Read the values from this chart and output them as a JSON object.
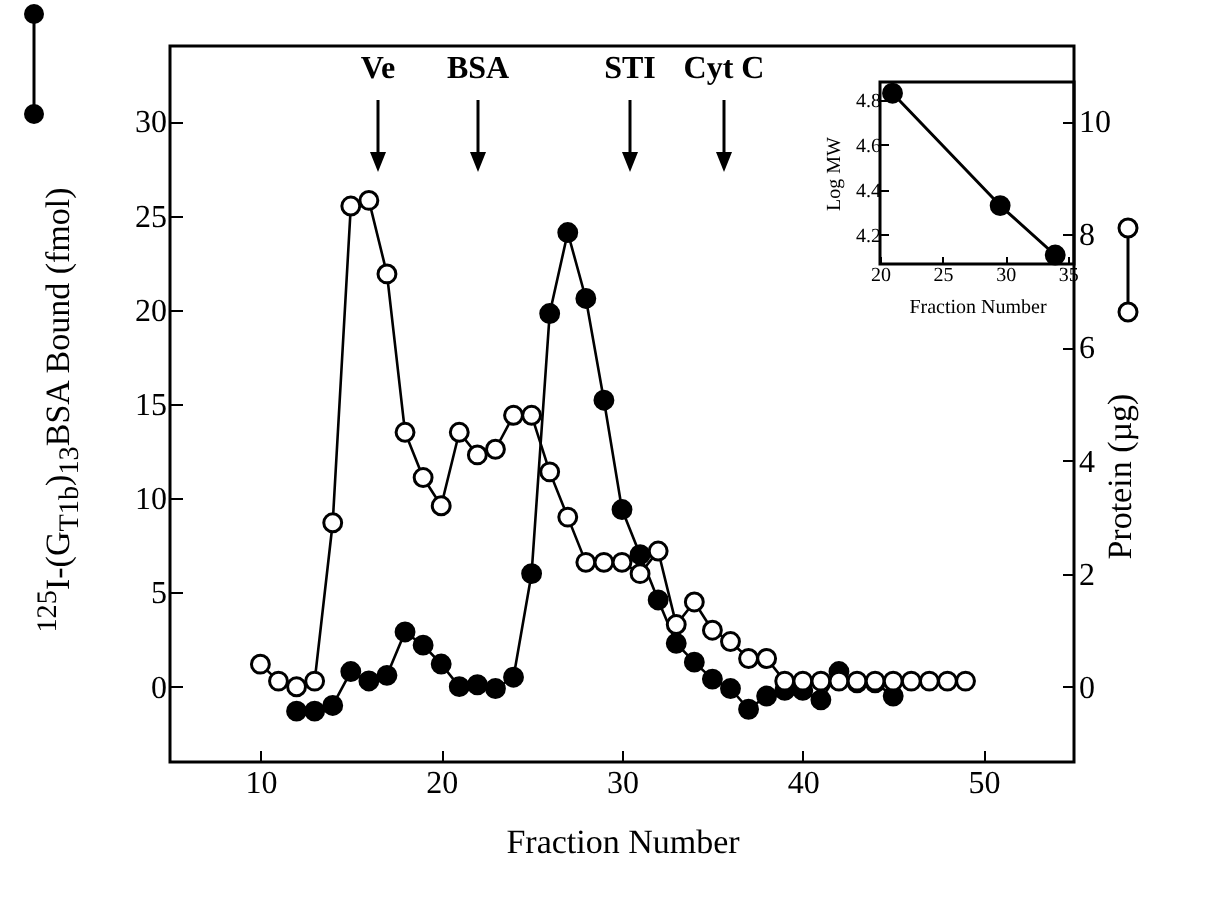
{
  "chart_data": [
    {
      "type": "line",
      "xlabel": "Fraction Number",
      "ylabel": "$^{125}$I-(G$_{T1b}$)$_{13}$BSA Bound  (fmol)",
      "y2label": "Protein (µg)",
      "xlim": [
        5,
        55
      ],
      "xticks": [
        10,
        20,
        30,
        40,
        50
      ],
      "ylim": [
        -4,
        34
      ],
      "yticks": [
        0,
        5,
        10,
        15,
        20,
        25,
        30
      ],
      "y2lim": [
        -1.33,
        11.33
      ],
      "y2ticks": [
        0,
        2,
        4,
        6,
        8,
        10
      ],
      "marker": "circle",
      "grid": false,
      "annotations": [
        "Ve",
        "BSA",
        "STI",
        "Cyt C"
      ],
      "series": [
        {
          "color": "#000000",
          "x": [
            12,
            13,
            14,
            15,
            16,
            17,
            18,
            19,
            20,
            21,
            22,
            23,
            24,
            25,
            26,
            27,
            28,
            29,
            30,
            31,
            32,
            33,
            34,
            35,
            36,
            37,
            38,
            39,
            40,
            41,
            42,
            43,
            44,
            45
          ],
          "values": [
            -1.3,
            -1.3,
            -1.0,
            0.8,
            0.3,
            0.6,
            2.9,
            2.2,
            1.2,
            0,
            0.1,
            -0.1,
            0.5,
            6.0,
            19.8,
            24.1,
            20.6,
            15.2,
            9.4,
            7.0,
            4.6,
            2.3,
            1.3,
            0.4,
            -0.1,
            -1.2,
            -0.5,
            -0.2,
            -0.2,
            -0.7,
            0.8,
            0.2,
            0.2,
            -0.5
          ]
        },
        {
          "color": "#000000",
          "axis": "y2",
          "x": [
            10,
            11,
            12,
            13,
            14,
            15,
            16,
            17,
            18,
            19,
            20,
            21,
            22,
            23,
            24,
            25,
            26,
            27,
            28,
            29,
            30,
            31,
            32,
            33,
            34,
            35,
            36,
            37,
            38,
            39,
            40,
            41,
            42,
            43,
            44,
            45,
            46,
            47,
            48,
            49
          ],
          "values": [
            0.4,
            0.1,
            0.0,
            0.1,
            2.9,
            8.5,
            8.6,
            7.3,
            4.5,
            3.7,
            3.2,
            4.5,
            4.1,
            4.2,
            4.8,
            4.8,
            3.8,
            3.0,
            2.2,
            2.2,
            2.2,
            2.0,
            2.4,
            1.1,
            1.5,
            1.0,
            0.8,
            0.5,
            0.5,
            0.1,
            0.1,
            0.1,
            0.1,
            0.1,
            0.1,
            0.1,
            0.1,
            0.1,
            0.1,
            0.1
          ]
        }
      ]
    },
    {
      "type": "line",
      "xlabel": "Fraction Number",
      "ylabel": "Log MW",
      "xlim": [
        20,
        35.5
      ],
      "xticks": [
        20,
        25,
        30,
        35
      ],
      "ylim": [
        4.07,
        4.88
      ],
      "yticks": [
        4.2,
        4.4,
        4.6,
        4.8
      ],
      "marker": "circle",
      "grid": false,
      "series": [
        {
          "color": "#000000",
          "x": [
            21,
            29.6,
            34
          ],
          "values": [
            4.83,
            4.33,
            4.11
          ]
        }
      ]
    }
  ]
}
